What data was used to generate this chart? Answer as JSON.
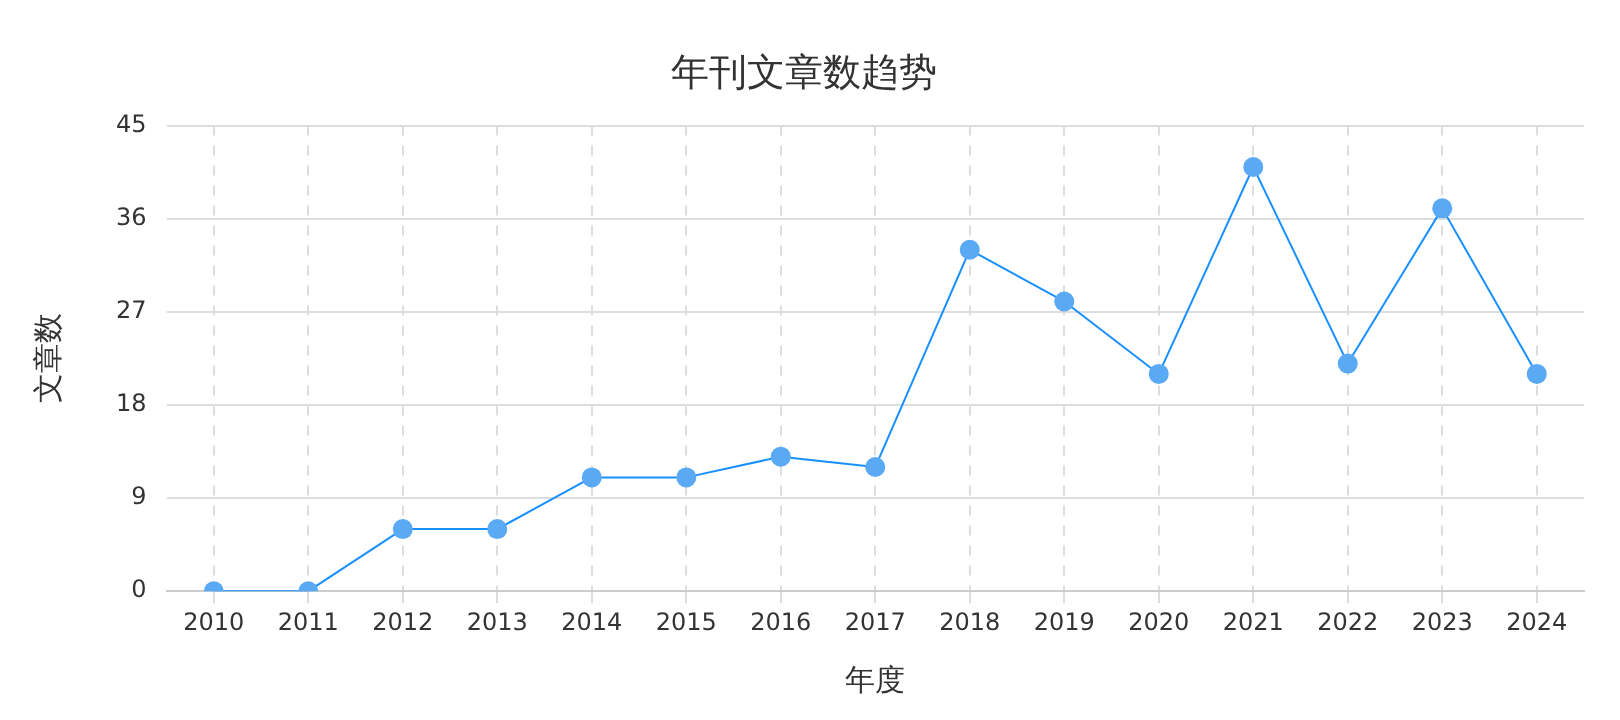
{
  "chart_data": {
    "type": "line",
    "title": "年刊文章数趋势",
    "xlabel": "年度",
    "ylabel": "文章数",
    "categories": [
      "2010",
      "2011",
      "2012",
      "2013",
      "2014",
      "2015",
      "2016",
      "2017",
      "2018",
      "2019",
      "2020",
      "2021",
      "2022",
      "2023",
      "2024"
    ],
    "series": [
      {
        "color": "#1890ff",
        "values": [
          0,
          0,
          6,
          6,
          11,
          11,
          13,
          12,
          33,
          28,
          21,
          41,
          22,
          37,
          21
        ]
      }
    ],
    "ylim": [
      0,
      45
    ],
    "yticks": [
      0,
      9,
      18,
      27,
      36,
      45
    ],
    "grid": true,
    "legend": false,
    "marker": "circle",
    "line_style": "solid"
  }
}
